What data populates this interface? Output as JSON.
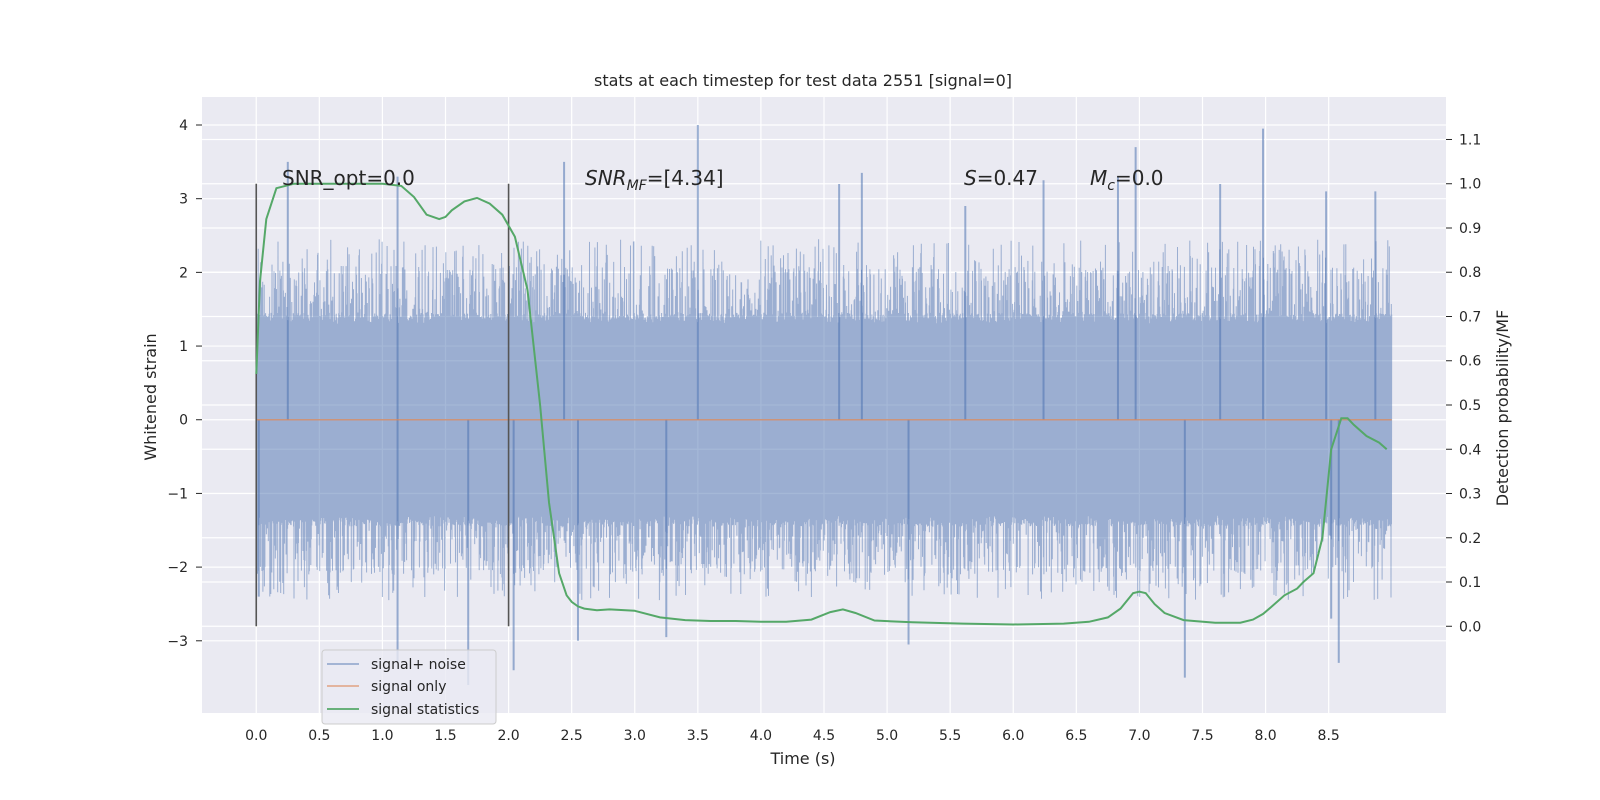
{
  "chart_data": {
    "type": "line",
    "title": "stats at each timestep for test data 2551 [signal=0]",
    "xlabel": "Time (s)",
    "ylabel": "Whitened strain",
    "ylabel_right": "Detection probability/MF",
    "xlim": [
      -0.43,
      9.43
    ],
    "ylim": [
      -3.98,
      4.38
    ],
    "ylim_right": [
      -0.196,
      1.196
    ],
    "x_ticks": [
      "0.0",
      "0.5",
      "1.0",
      "1.5",
      "2.0",
      "2.5",
      "3.0",
      "3.5",
      "4.0",
      "4.5",
      "5.0",
      "5.5",
      "6.0",
      "6.5",
      "7.0",
      "7.5",
      "8.0",
      "8.5"
    ],
    "y_ticks": [
      "4",
      "3",
      "2",
      "1",
      "0",
      "−1",
      "−2",
      "−3"
    ],
    "y_ticks_right": [
      "1.1",
      "1.0",
      "0.9",
      "0.8",
      "0.7",
      "0.6",
      "0.5",
      "0.4",
      "0.3",
      "0.2",
      "0.1",
      "0.0"
    ],
    "grid": true,
    "legend_position": "lower-left",
    "colors": {
      "background": "#eaeaf2",
      "noise": "#4c72b0",
      "signal": "#dd8452",
      "stats": "#55a868",
      "marker": "#555555"
    },
    "annotations": {
      "snr_opt": "SNR_opt=0.0",
      "snr_mf": "SNR",
      "snr_mf_sub": "MF",
      "snr_mf_value": "=[4.34]",
      "s_sym": "S",
      "s_value": "=0.47",
      "mc_sym": "M",
      "mc_sub": "c",
      "mc_value": "=0.0"
    },
    "vertical_markers": [
      0.0,
      2.0
    ],
    "series": [
      {
        "name": "signal+ noise",
        "x_range": [
          0.0,
          9.0
        ],
        "envelope_core": [
          -1.4,
          1.4
        ],
        "envelope_typical": [
          -2.0,
          2.0
        ],
        "peaks": [
          {
            "x": 0.25,
            "y": 3.5
          },
          {
            "x": 1.12,
            "y": 3.3
          },
          {
            "x": 2.44,
            "y": 3.5
          },
          {
            "x": 3.5,
            "y": 4.0
          },
          {
            "x": 4.62,
            "y": 3.2
          },
          {
            "x": 4.8,
            "y": 3.35
          },
          {
            "x": 5.62,
            "y": 2.9
          },
          {
            "x": 6.24,
            "y": 3.25
          },
          {
            "x": 6.83,
            "y": 3.3
          },
          {
            "x": 6.97,
            "y": 3.7
          },
          {
            "x": 7.64,
            "y": 3.2
          },
          {
            "x": 7.98,
            "y": 3.95
          },
          {
            "x": 8.48,
            "y": 3.1
          },
          {
            "x": 8.87,
            "y": 3.1
          }
        ],
        "troughs": [
          {
            "x": 0.02,
            "y": -2.4
          },
          {
            "x": 1.12,
            "y": -3.3
          },
          {
            "x": 1.68,
            "y": -3.6
          },
          {
            "x": 2.04,
            "y": -3.4
          },
          {
            "x": 2.55,
            "y": -3.0
          },
          {
            "x": 3.25,
            "y": -2.95
          },
          {
            "x": 5.17,
            "y": -3.05
          },
          {
            "x": 7.36,
            "y": -3.5
          },
          {
            "x": 8.58,
            "y": -3.3
          },
          {
            "x": 8.52,
            "y": -2.7
          }
        ]
      },
      {
        "name": "signal only",
        "x": [
          0.0,
          9.0
        ],
        "y": [
          0.0,
          0.0
        ]
      },
      {
        "name": "signal statistics",
        "axis": "right",
        "x": [
          0.0,
          0.03,
          0.08,
          0.16,
          0.3,
          0.5,
          0.8,
          1.0,
          1.15,
          1.25,
          1.35,
          1.45,
          1.5,
          1.55,
          1.65,
          1.75,
          1.85,
          1.95,
          2.05,
          2.15,
          2.25,
          2.32,
          2.4,
          2.46,
          2.5,
          2.55,
          2.6,
          2.7,
          2.8,
          3.0,
          3.2,
          3.4,
          3.6,
          3.8,
          4.0,
          4.2,
          4.4,
          4.55,
          4.65,
          4.75,
          4.9,
          5.2,
          5.6,
          6.0,
          6.4,
          6.6,
          6.75,
          6.85,
          6.95,
          7.0,
          7.05,
          7.12,
          7.2,
          7.35,
          7.6,
          7.8,
          7.9,
          7.98,
          8.05,
          8.15,
          8.25,
          8.3,
          8.38,
          8.45,
          8.52,
          8.6,
          8.65,
          8.7,
          8.8,
          8.9,
          8.96
        ],
        "y": [
          0.57,
          0.78,
          0.92,
          0.99,
          1.0,
          1.0,
          1.0,
          1.0,
          0.995,
          0.97,
          0.93,
          0.92,
          0.925,
          0.94,
          0.96,
          0.968,
          0.955,
          0.93,
          0.88,
          0.76,
          0.5,
          0.28,
          0.12,
          0.07,
          0.055,
          0.045,
          0.04,
          0.036,
          0.038,
          0.035,
          0.02,
          0.014,
          0.012,
          0.012,
          0.01,
          0.01,
          0.015,
          0.032,
          0.038,
          0.03,
          0.013,
          0.009,
          0.006,
          0.004,
          0.006,
          0.01,
          0.02,
          0.04,
          0.075,
          0.078,
          0.075,
          0.05,
          0.03,
          0.014,
          0.008,
          0.008,
          0.015,
          0.028,
          0.045,
          0.07,
          0.085,
          0.1,
          0.12,
          0.2,
          0.4,
          0.47,
          0.47,
          0.455,
          0.43,
          0.415,
          0.4
        ]
      }
    ]
  }
}
